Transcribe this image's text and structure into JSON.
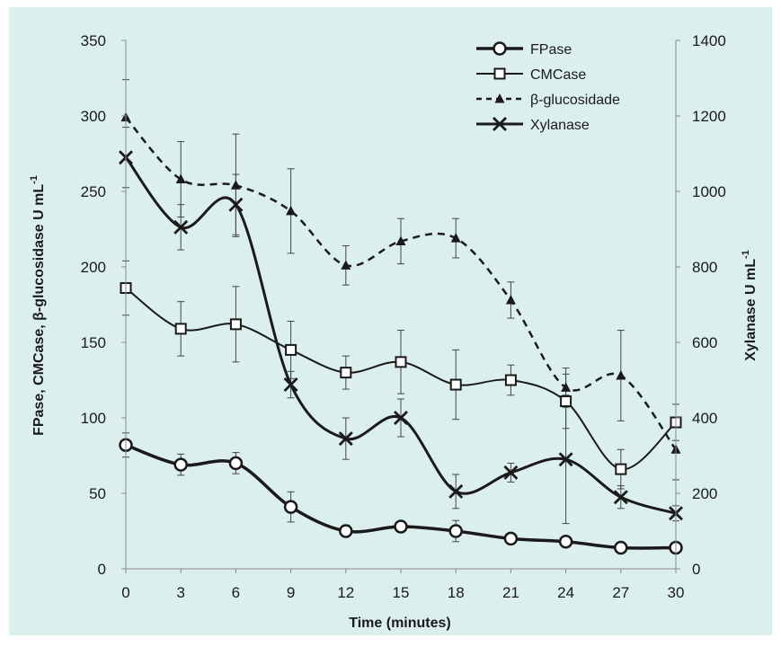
{
  "chart_data": {
    "type": "line",
    "xlabel": "Time (minutes)",
    "ylabel_left_prefix": "FPase, CMCase, β-glucosidase U mL",
    "ylabel_left_sup": "-1",
    "ylabel_right_prefix": "Xylanase U mL",
    "ylabel_right_sup": "-1",
    "x": [
      0,
      3,
      6,
      9,
      12,
      15,
      18,
      21,
      24,
      27,
      30
    ],
    "x_ticks": [
      0,
      3,
      6,
      9,
      12,
      15,
      18,
      21,
      24,
      27,
      30
    ],
    "xlim": [
      0,
      30
    ],
    "ylim_left": [
      0,
      350
    ],
    "ylim_right": [
      0,
      1400
    ],
    "y_ticks_left": [
      0,
      50,
      100,
      150,
      200,
      250,
      300,
      350
    ],
    "y_ticks_right": [
      0,
      200,
      400,
      600,
      800,
      1000,
      1200,
      1400
    ],
    "grid": false,
    "legend_position": "top-right",
    "background_color": "#dcefef",
    "series": [
      {
        "name": "FPase",
        "axis": "left",
        "marker": "circle",
        "line_style": "solid",
        "line_width": 3.5,
        "values": [
          82,
          69,
          70,
          41,
          25,
          28,
          25,
          20,
          18,
          14,
          14
        ],
        "errors": [
          8,
          7,
          7,
          10,
          4,
          3,
          7,
          3,
          3,
          2,
          3
        ]
      },
      {
        "name": "CMCase",
        "axis": "left",
        "marker": "square",
        "line_style": "solid",
        "line_width": 2,
        "values": [
          186,
          159,
          162,
          145,
          130,
          137,
          122,
          125,
          111,
          66,
          97
        ],
        "errors": [
          18,
          18,
          25,
          19,
          11,
          21,
          23,
          10,
          18,
          13,
          12
        ]
      },
      {
        "name": "β-glucosidade",
        "axis": "left",
        "marker": "triangle",
        "line_style": "dashed",
        "line_width": 2.5,
        "values": [
          299,
          258,
          254,
          237,
          201,
          217,
          219,
          178,
          120,
          128,
          79
        ],
        "errors": [
          25,
          25,
          34,
          28,
          13,
          15,
          13,
          12,
          13,
          30,
          20
        ]
      },
      {
        "name": "Xylanase",
        "axis": "right",
        "marker": "x",
        "line_style": "solid",
        "line_width": 3,
        "values": [
          1090,
          905,
          965,
          488,
          345,
          400,
          205,
          255,
          290,
          190,
          147
        ],
        "errors": [
          80,
          60,
          80,
          35,
          55,
          50,
          45,
          25,
          170,
          30,
          20
        ]
      }
    ]
  }
}
